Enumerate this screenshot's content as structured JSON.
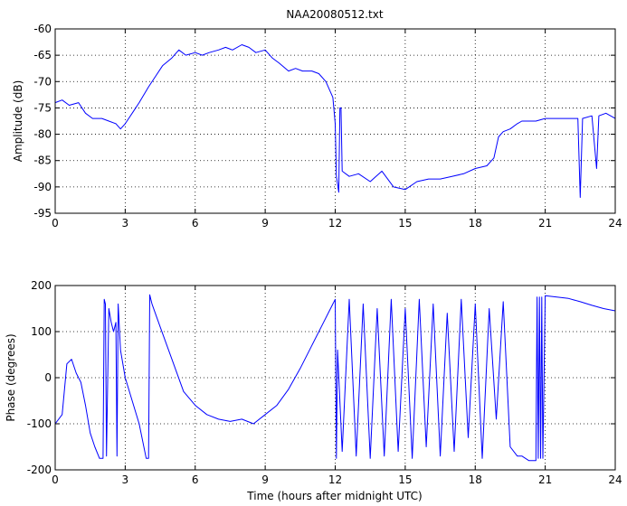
{
  "chart_data": [
    {
      "type": "line",
      "title": "NAA20080512.txt",
      "xlabel": "",
      "ylabel": "Amplitude (dB)",
      "xlim": [
        0,
        24
      ],
      "ylim": [
        -95,
        -60
      ],
      "xticks": [
        "0",
        "3",
        "6",
        "9",
        "12",
        "15",
        "18",
        "21",
        "24"
      ],
      "yticks": [
        "-60",
        "-65",
        "-70",
        "-75",
        "-80",
        "-85",
        "-90",
        "-95"
      ],
      "grid": true,
      "color": "#0000ff",
      "series": [
        {
          "x": [
            0,
            0.3,
            0.6,
            1.0,
            1.3,
            1.6,
            2.0,
            2.3,
            2.6,
            2.8,
            3.0,
            3.3,
            3.6,
            4.0,
            4.3,
            4.6,
            5.0,
            5.3,
            5.6,
            6.0,
            6.3,
            6.6,
            7.0,
            7.3,
            7.6,
            8.0,
            8.3,
            8.6,
            9.0,
            9.3,
            9.6,
            10.0,
            10.3,
            10.6,
            11.0,
            11.3,
            11.6,
            11.9,
            12.0,
            12.05,
            12.15,
            12.2,
            12.25,
            12.3,
            12.6,
            13.0,
            13.5,
            14.0,
            14.5,
            15.0,
            15.5,
            16.0,
            16.5,
            17.0,
            17.5,
            18.0,
            18.5,
            18.8,
            19.0,
            19.2,
            19.5,
            19.8,
            20.0,
            20.3,
            20.6,
            21.0,
            21.5,
            22.0,
            22.4,
            22.5,
            22.6,
            23.0,
            23.2,
            23.3,
            23.6,
            24.0
          ],
          "y": [
            -74,
            -73.5,
            -74.5,
            -74,
            -76,
            -77,
            -77,
            -77.5,
            -78,
            -79,
            -78,
            -76,
            -74,
            -71,
            -69,
            -67,
            -65.5,
            -64,
            -65,
            -64.5,
            -65,
            -64.5,
            -64,
            -63.5,
            -64,
            -63,
            -63.5,
            -64.5,
            -64,
            -65.5,
            -66.5,
            -68,
            -67.5,
            -68,
            -68,
            -68.5,
            -70,
            -73,
            -78,
            -88,
            -91,
            -75,
            -75,
            -87,
            -88,
            -87.5,
            -89,
            -87,
            -90,
            -90.5,
            -89,
            -88.5,
            -88.5,
            -88,
            -87.5,
            -86.5,
            -86,
            -84.5,
            -80.5,
            -79.5,
            -79,
            -78,
            -77.5,
            -77.5,
            -77.5,
            -77,
            -77,
            -77,
            -77,
            -92,
            -77,
            -76.5,
            -86.5,
            -76.5,
            -76,
            -77
          ]
        }
      ]
    },
    {
      "type": "line",
      "title": "",
      "xlabel": "Time (hours after midnight UTC)",
      "ylabel": "Phase (degrees)",
      "xlim": [
        0,
        24
      ],
      "ylim": [
        -200,
        200
      ],
      "xticks": [
        "0",
        "3",
        "6",
        "9",
        "12",
        "15",
        "18",
        "21",
        "24"
      ],
      "yticks": [
        "200",
        "100",
        "0",
        "-100",
        "-200"
      ],
      "grid": true,
      "color": "#0000ff",
      "series": [
        {
          "x": [
            0,
            0.3,
            0.5,
            0.7,
            0.9,
            1.1,
            1.3,
            1.5,
            1.7,
            1.9,
            2.05,
            2.1,
            2.15,
            2.2,
            2.3,
            2.4,
            2.5,
            2.6,
            2.65,
            2.7,
            2.8,
            3.0,
            3.3,
            3.6,
            3.9,
            4.0,
            4.05,
            4.1,
            4.15,
            4.5,
            5.0,
            5.5,
            6.0,
            6.5,
            7.0,
            7.5,
            8.0,
            8.5,
            9.0,
            9.5,
            10.0,
            10.5,
            11.0,
            11.5,
            11.9,
            12.0,
            12.05,
            12.1,
            12.3,
            12.6,
            12.9,
            13.2,
            13.5,
            13.8,
            14.1,
            14.4,
            14.7,
            15.0,
            15.3,
            15.6,
            15.9,
            16.2,
            16.5,
            16.8,
            17.1,
            17.4,
            17.7,
            18.0,
            18.3,
            18.6,
            18.9,
            19.2,
            19.5,
            19.8,
            20.0,
            20.3,
            20.6,
            20.65,
            20.7,
            20.75,
            20.8,
            20.85,
            20.9,
            21.0,
            21.5,
            22.0,
            22.5,
            23.0,
            23.5,
            24.0
          ],
          "y": [
            -100,
            -80,
            30,
            40,
            10,
            -10,
            -60,
            -120,
            -150,
            -175,
            -175,
            170,
            160,
            -170,
            150,
            120,
            100,
            120,
            -170,
            160,
            60,
            0,
            -50,
            -100,
            -175,
            -175,
            180,
            170,
            160,
            110,
            40,
            -30,
            -60,
            -80,
            -90,
            -95,
            -90,
            -100,
            -80,
            -60,
            -25,
            20,
            70,
            120,
            160,
            170,
            -175,
            60,
            -160,
            170,
            -170,
            160,
            -175,
            150,
            -170,
            170,
            -160,
            150,
            -175,
            170,
            -150,
            160,
            -170,
            140,
            -160,
            170,
            -130,
            160,
            -175,
            150,
            -90,
            165,
            -150,
            -170,
            -170,
            -180,
            -180,
            175,
            -175,
            175,
            -175,
            175,
            -175,
            178,
            175,
            172,
            165,
            157,
            150,
            145
          ]
        }
      ]
    }
  ]
}
